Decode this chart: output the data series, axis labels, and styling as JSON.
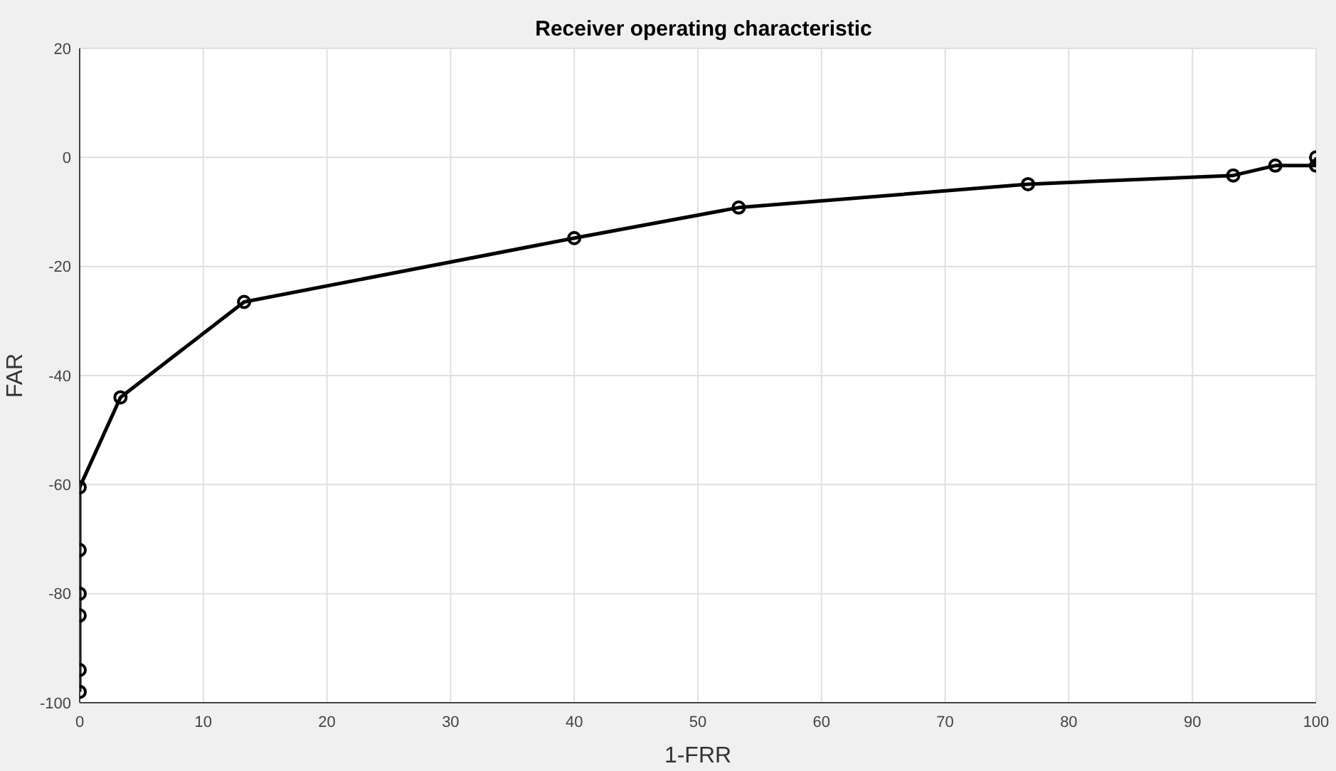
{
  "chart_data": {
    "type": "line",
    "title": "Receiver operating characteristic",
    "xlabel": "1-FRR",
    "ylabel": "FAR",
    "x": [
      0,
      0,
      0,
      0,
      0,
      0,
      3.3,
      13.3,
      40,
      53.3,
      76.7,
      93.3,
      96.7,
      100,
      100
    ],
    "series": [
      {
        "color": "#000000",
        "values": [
          -98,
          -94,
          -84,
          -80,
          -72,
          -60.5,
          -44,
          -26.5,
          -14.8,
          -9.2,
          -4.9,
          -3.3,
          -1.5,
          -1.5,
          0
        ]
      }
    ],
    "xlim": [
      0,
      100
    ],
    "xticks": [
      0,
      10,
      20,
      30,
      40,
      50,
      60,
      70,
      80,
      90,
      100
    ],
    "ylim": [
      -100,
      20
    ],
    "yticks": [
      -100,
      -80,
      -60,
      -40,
      -20,
      0,
      20
    ],
    "grid": true,
    "marker": "circle",
    "line_style": "solid"
  }
}
